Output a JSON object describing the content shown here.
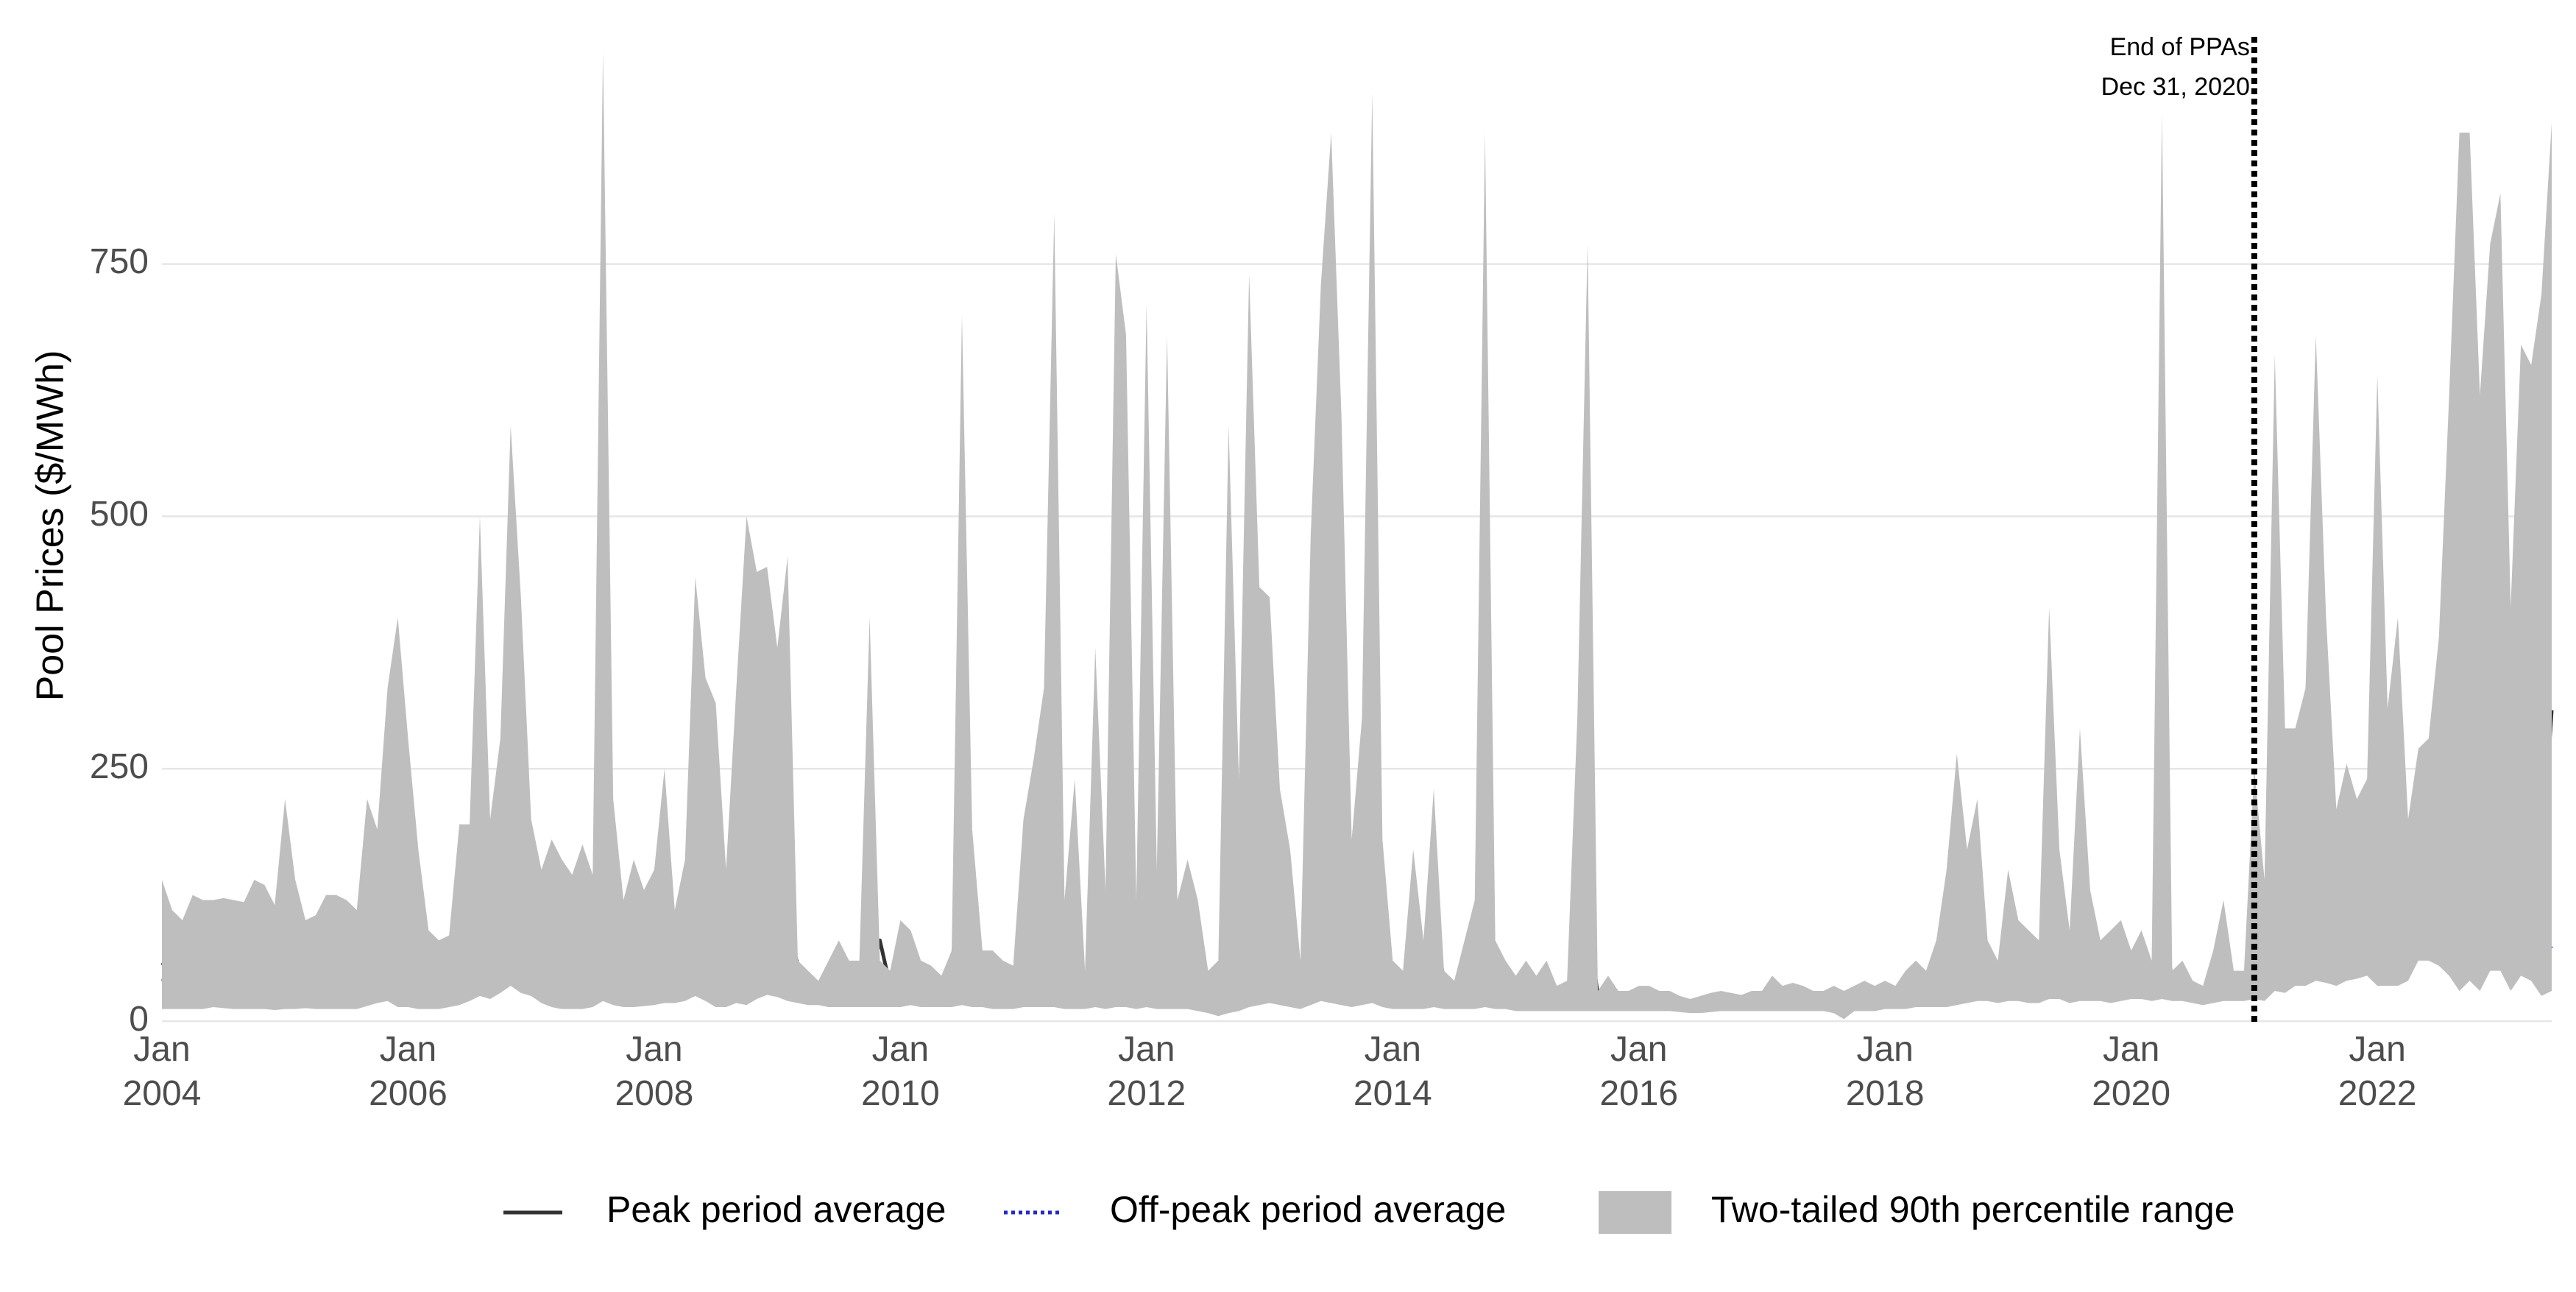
{
  "chart_data": {
    "type": "line",
    "ylabel": "Pool Prices ($/MWh)",
    "x": [
      "2004-01",
      "2004-02",
      "2004-03",
      "2004-04",
      "2004-05",
      "2004-06",
      "2004-07",
      "2004-08",
      "2004-09",
      "2004-10",
      "2004-11",
      "2004-12",
      "2005-01",
      "2005-02",
      "2005-03",
      "2005-04",
      "2005-05",
      "2005-06",
      "2005-07",
      "2005-08",
      "2005-09",
      "2005-10",
      "2005-11",
      "2005-12",
      "2006-01",
      "2006-02",
      "2006-03",
      "2006-04",
      "2006-05",
      "2006-06",
      "2006-07",
      "2006-08",
      "2006-09",
      "2006-10",
      "2006-11",
      "2006-12",
      "2007-01",
      "2007-02",
      "2007-03",
      "2007-04",
      "2007-05",
      "2007-06",
      "2007-07",
      "2007-08",
      "2007-09",
      "2007-10",
      "2007-11",
      "2007-12",
      "2008-01",
      "2008-02",
      "2008-03",
      "2008-04",
      "2008-05",
      "2008-06",
      "2008-07",
      "2008-08",
      "2008-09",
      "2008-10",
      "2008-11",
      "2008-12",
      "2009-01",
      "2009-02",
      "2009-03",
      "2009-04",
      "2009-05",
      "2009-06",
      "2009-07",
      "2009-08",
      "2009-09",
      "2009-10",
      "2009-11",
      "2009-12",
      "2010-01",
      "2010-02",
      "2010-03",
      "2010-04",
      "2010-05",
      "2010-06",
      "2010-07",
      "2010-08",
      "2010-09",
      "2010-10",
      "2010-11",
      "2010-12",
      "2011-01",
      "2011-02",
      "2011-03",
      "2011-04",
      "2011-05",
      "2011-06",
      "2011-07",
      "2011-08",
      "2011-09",
      "2011-10",
      "2011-11",
      "2011-12",
      "2012-01",
      "2012-02",
      "2012-03",
      "2012-04",
      "2012-05",
      "2012-06",
      "2012-07",
      "2012-08",
      "2012-09",
      "2012-10",
      "2012-11",
      "2012-12",
      "2013-01",
      "2013-02",
      "2013-03",
      "2013-04",
      "2013-05",
      "2013-06",
      "2013-07",
      "2013-08",
      "2013-09",
      "2013-10",
      "2013-11",
      "2013-12",
      "2014-01",
      "2014-02",
      "2014-03",
      "2014-04",
      "2014-05",
      "2014-06",
      "2014-07",
      "2014-08",
      "2014-09",
      "2014-10",
      "2014-11",
      "2014-12",
      "2015-01",
      "2015-02",
      "2015-03",
      "2015-04",
      "2015-05",
      "2015-06",
      "2015-07",
      "2015-08",
      "2015-09",
      "2015-10",
      "2015-11",
      "2015-12",
      "2016-01",
      "2016-02",
      "2016-03",
      "2016-04",
      "2016-05",
      "2016-06",
      "2016-07",
      "2016-08",
      "2016-09",
      "2016-10",
      "2016-11",
      "2016-12",
      "2017-01",
      "2017-02",
      "2017-03",
      "2017-04",
      "2017-05",
      "2017-06",
      "2017-07",
      "2017-08",
      "2017-09",
      "2017-10",
      "2017-11",
      "2017-12",
      "2018-01",
      "2018-02",
      "2018-03",
      "2018-04",
      "2018-05",
      "2018-06",
      "2018-07",
      "2018-08",
      "2018-09",
      "2018-10",
      "2018-11",
      "2018-12",
      "2019-01",
      "2019-02",
      "2019-03",
      "2019-04",
      "2019-05",
      "2019-06",
      "2019-07",
      "2019-08",
      "2019-09",
      "2019-10",
      "2019-11",
      "2019-12",
      "2020-01",
      "2020-02",
      "2020-03",
      "2020-04",
      "2020-05",
      "2020-06",
      "2020-07",
      "2020-08",
      "2020-09",
      "2020-10",
      "2020-11",
      "2020-12",
      "2021-01",
      "2021-02",
      "2021-03",
      "2021-04",
      "2021-05",
      "2021-06",
      "2021-07",
      "2021-08",
      "2021-09",
      "2021-10",
      "2021-11",
      "2021-12",
      "2022-01",
      "2022-02",
      "2022-03",
      "2022-04",
      "2022-05",
      "2022-06",
      "2022-07",
      "2022-08",
      "2022-09",
      "2022-10",
      "2022-11",
      "2022-12",
      "2023-01",
      "2023-02",
      "2023-03",
      "2023-04",
      "2023-05",
      "2023-06"
    ],
    "series": [
      {
        "name": "Peak period average",
        "color": "#333333",
        "dash": "solid",
        "values": [
          58,
          50,
          45,
          55,
          68,
          64,
          60,
          55,
          52,
          57,
          58,
          48,
          62,
          55,
          48,
          45,
          52,
          50,
          55,
          45,
          90,
          80,
          125,
          128,
          105,
          75,
          55,
          45,
          42,
          55,
          60,
          135,
          75,
          85,
          178,
          110,
          75,
          65,
          72,
          60,
          55,
          52,
          52,
          163,
          75,
          50,
          65,
          58,
          68,
          80,
          70,
          90,
          140,
          110,
          85,
          68,
          90,
          100,
          105,
          100,
          92,
          95,
          55,
          45,
          32,
          32,
          35,
          40,
          45,
          38,
          80,
          35,
          50,
          55,
          45,
          45,
          38,
          55,
          140,
          60,
          40,
          40,
          32,
          30,
          50,
          60,
          80,
          128,
          50,
          55,
          35,
          75,
          65,
          133,
          110,
          75,
          115,
          55,
          90,
          50,
          55,
          45,
          30,
          55,
          75,
          60,
          115,
          95,
          95,
          60,
          60,
          28,
          110,
          138,
          130,
          110,
          60,
          90,
          120,
          55,
          35,
          30,
          55,
          45,
          100,
          40,
          30,
          55,
          45,
          130,
          50,
          30,
          25,
          35,
          30,
          35,
          25,
          22,
          60,
          105,
          25,
          35,
          20,
          20,
          20,
          20,
          20,
          18,
          15,
          14,
          15,
          16,
          18,
          18,
          16,
          18,
          18,
          25,
          20,
          22,
          22,
          20,
          20,
          22,
          18,
          20,
          25,
          22,
          25,
          22,
          28,
          40,
          30,
          35,
          45,
          67,
          65,
          62,
          70,
          40,
          62,
          58,
          45,
          40,
          110,
          70,
          38,
          75,
          50,
          45,
          50,
          55,
          45,
          55,
          40,
          128,
          35,
          40,
          28,
          25,
          30,
          58,
          40,
          38,
          65,
          35,
          155,
          65,
          85,
          80,
          150,
          130,
          85,
          95,
          95,
          100,
          128,
          90,
          100,
          75,
          118,
          122,
          128,
          145,
          270,
          272,
          150,
          180,
          320,
          125,
          175,
          145,
          155,
          308
        ]
      },
      {
        "name": "Off-peak period average",
        "color": "#2727c8",
        "dash": "dotted",
        "values": [
          42,
          38,
          35,
          45,
          50,
          46,
          44,
          40,
          38,
          45,
          42,
          38,
          45,
          40,
          36,
          35,
          42,
          40,
          42,
          35,
          60,
          50,
          95,
          85,
          60,
          45,
          35,
          30,
          28,
          30,
          35,
          80,
          60,
          65,
          115,
          75,
          55,
          42,
          45,
          38,
          32,
          22,
          30,
          90,
          45,
          38,
          40,
          45,
          45,
          55,
          50,
          60,
          85,
          70,
          50,
          40,
          50,
          60,
          70,
          75,
          70,
          65,
          40,
          30,
          25,
          22,
          20,
          20,
          25,
          22,
          32,
          22,
          30,
          35,
          30,
          30,
          25,
          30,
          55,
          35,
          25,
          28,
          22,
          20,
          30,
          30,
          35,
          45,
          25,
          28,
          22,
          35,
          25,
          30,
          35,
          28,
          40,
          25,
          35,
          30,
          30,
          20,
          12,
          10,
          20,
          25,
          65,
          40,
          40,
          35,
          30,
          25,
          45,
          60,
          55,
          40,
          30,
          50,
          60,
          35,
          25,
          22,
          30,
          28,
          60,
          25,
          20,
          25,
          22,
          45,
          25,
          18,
          20,
          25,
          20,
          25,
          20,
          18,
          30,
          50,
          20,
          25,
          15,
          15,
          16,
          16,
          16,
          15,
          13,
          12,
          13,
          14,
          15,
          15,
          14,
          15,
          15,
          20,
          16,
          18,
          18,
          16,
          16,
          18,
          15,
          16,
          20,
          18,
          20,
          18,
          22,
          30,
          26,
          28,
          30,
          33,
          35,
          35,
          38,
          30,
          40,
          38,
          35,
          30,
          100,
          55,
          30,
          40,
          35,
          32,
          30,
          35,
          32,
          35,
          30,
          50,
          30,
          32,
          25,
          22,
          25,
          35,
          30,
          30,
          40,
          30,
          50,
          45,
          60,
          55,
          60,
          60,
          55,
          65,
          70,
          75,
          85,
          60,
          75,
          55,
          90,
          100,
          95,
          105,
          150,
          130,
          140,
          170,
          255,
          95,
          175,
          120,
          80,
          72
        ]
      },
      {
        "name": "Two-tailed 90th percentile range",
        "color": "#bebebe",
        "lower": [
          12,
          12,
          12,
          12,
          12,
          14,
          13,
          12,
          12,
          12,
          12,
          11,
          12,
          12,
          13,
          12,
          12,
          12,
          12,
          12,
          15,
          18,
          20,
          14,
          14,
          12,
          12,
          12,
          14,
          16,
          20,
          25,
          22,
          28,
          35,
          28,
          25,
          18,
          14,
          12,
          12,
          12,
          14,
          20,
          16,
          14,
          14,
          15,
          16,
          18,
          18,
          20,
          25,
          20,
          14,
          14,
          18,
          16,
          22,
          26,
          24,
          20,
          18,
          16,
          16,
          14,
          14,
          14,
          14,
          14,
          14,
          14,
          14,
          16,
          14,
          14,
          14,
          14,
          16,
          14,
          14,
          12,
          12,
          12,
          14,
          14,
          14,
          14,
          12,
          12,
          12,
          14,
          12,
          14,
          14,
          12,
          14,
          12,
          12,
          12,
          12,
          10,
          8,
          5,
          8,
          10,
          14,
          16,
          18,
          16,
          14,
          12,
          16,
          20,
          18,
          16,
          14,
          16,
          18,
          14,
          12,
          12,
          12,
          12,
          14,
          12,
          12,
          12,
          12,
          14,
          12,
          12,
          10,
          10,
          10,
          10,
          10,
          10,
          10,
          10,
          10,
          10,
          10,
          10,
          10,
          10,
          10,
          10,
          9,
          8,
          8,
          9,
          10,
          10,
          10,
          10,
          10,
          10,
          10,
          10,
          10,
          10,
          10,
          8,
          2,
          10,
          10,
          10,
          12,
          12,
          12,
          14,
          14,
          14,
          14,
          16,
          18,
          20,
          20,
          18,
          20,
          20,
          18,
          18,
          22,
          22,
          18,
          20,
          20,
          20,
          18,
          20,
          22,
          22,
          20,
          22,
          20,
          20,
          18,
          16,
          18,
          20,
          20,
          20,
          22,
          20,
          30,
          28,
          35,
          35,
          40,
          38,
          35,
          40,
          42,
          45,
          35,
          35,
          35,
          40,
          60,
          60,
          55,
          45,
          30,
          40,
          30,
          50,
          50,
          30,
          45,
          40,
          25,
          30
        ],
        "upper": [
          140,
          110,
          100,
          125,
          120,
          120,
          122,
          120,
          118,
          140,
          135,
          115,
          220,
          140,
          100,
          105,
          125,
          125,
          120,
          110,
          220,
          190,
          330,
          400,
          280,
          170,
          90,
          80,
          85,
          195,
          195,
          500,
          200,
          280,
          590,
          420,
          200,
          150,
          180,
          160,
          145,
          175,
          145,
          960,
          220,
          120,
          160,
          130,
          150,
          250,
          110,
          160,
          440,
          340,
          315,
          150,
          330,
          500,
          445,
          450,
          370,
          460,
          60,
          50,
          40,
          60,
          80,
          60,
          60,
          400,
          60,
          50,
          100,
          90,
          60,
          55,
          45,
          70,
          700,
          190,
          70,
          70,
          60,
          55,
          200,
          260,
          330,
          800,
          120,
          240,
          50,
          370,
          130,
          760,
          680,
          120,
          710,
          150,
          680,
          120,
          160,
          120,
          50,
          60,
          590,
          240,
          740,
          430,
          420,
          230,
          170,
          60,
          480,
          730,
          880,
          600,
          180,
          300,
          920,
          180,
          60,
          50,
          170,
          80,
          230,
          50,
          40,
          80,
          120,
          880,
          80,
          60,
          45,
          60,
          45,
          60,
          35,
          40,
          300,
          770,
          30,
          45,
          30,
          30,
          35,
          35,
          30,
          30,
          25,
          22,
          25,
          28,
          30,
          28,
          26,
          30,
          30,
          45,
          35,
          38,
          35,
          30,
          30,
          35,
          30,
          35,
          40,
          35,
          40,
          35,
          50,
          60,
          50,
          80,
          150,
          265,
          170,
          220,
          80,
          60,
          150,
          100,
          90,
          80,
          410,
          170,
          90,
          290,
          130,
          80,
          90,
          100,
          70,
          90,
          60,
          900,
          50,
          60,
          40,
          35,
          70,
          120,
          50,
          50,
          250,
          140,
          660,
          290,
          290,
          330,
          680,
          400,
          210,
          255,
          220,
          240,
          640,
          310,
          400,
          200,
          270,
          280,
          380,
          620,
          880,
          880,
          620,
          770,
          820,
          410,
          670,
          650,
          720,
          890
        ]
      }
    ],
    "xlim": [
      "2004-01",
      "2023-06"
    ],
    "xticks": [
      {
        "value": "2004-01",
        "label": "Jan 2004"
      },
      {
        "value": "2006-01",
        "label": "Jan 2006"
      },
      {
        "value": "2008-01",
        "label": "Jan 2008"
      },
      {
        "value": "2010-01",
        "label": "Jan 2010"
      },
      {
        "value": "2012-01",
        "label": "Jan 2012"
      },
      {
        "value": "2014-01",
        "label": "Jan 2014"
      },
      {
        "value": "2016-01",
        "label": "Jan 2016"
      },
      {
        "value": "2018-01",
        "label": "Jan 2018"
      },
      {
        "value": "2020-01",
        "label": "Jan 2020"
      },
      {
        "value": "2022-01",
        "label": "Jan 2022"
      }
    ],
    "ylim": [
      -5,
      975
    ],
    "yticks": [
      0,
      250,
      500,
      750
    ],
    "grid": true,
    "annotation": {
      "x": "2021-01",
      "lines": [
        "End of PPAs",
        "Dec 31, 2020"
      ]
    }
  }
}
